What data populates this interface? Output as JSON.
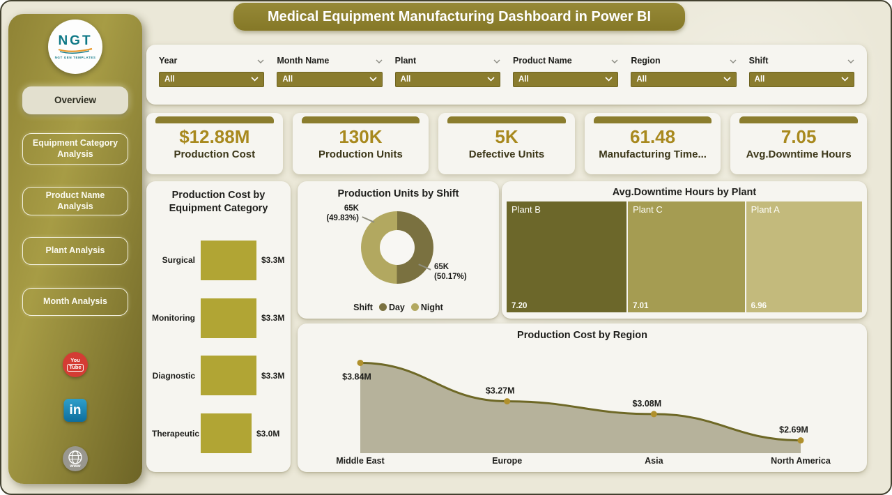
{
  "title": "Medical Equipment Manufacturing Dashboard in Power BI",
  "logo": {
    "text": "NGT",
    "subtext": "NGT GEN TEMPLATES"
  },
  "sidebar": {
    "items": [
      {
        "label": "Overview",
        "active": true
      },
      {
        "label": "Equipment Category Analysis",
        "active": false
      },
      {
        "label": "Product Name Analysis",
        "active": false
      },
      {
        "label": "Plant Analysis",
        "active": false
      },
      {
        "label": "Month Analysis",
        "active": false
      }
    ],
    "social": {
      "youtube_line1": "You",
      "youtube_line2": "Tube",
      "linkedin": "in",
      "web": "www"
    }
  },
  "filters": [
    {
      "label": "Year",
      "value": "All"
    },
    {
      "label": "Month Name",
      "value": "All"
    },
    {
      "label": "Plant",
      "value": "All"
    },
    {
      "label": "Product Name",
      "value": "All"
    },
    {
      "label": "Region",
      "value": "All"
    },
    {
      "label": "Shift",
      "value": "All"
    }
  ],
  "kpis": [
    {
      "value": "$12.88M",
      "label": "Production Cost"
    },
    {
      "value": "130K",
      "label": "Production Units"
    },
    {
      "value": "5K",
      "label": "Defective Units"
    },
    {
      "value": "61.48",
      "label": "Manufacturing Time..."
    },
    {
      "value": "7.05",
      "label": "Avg.Downtime Hours"
    }
  ],
  "chart_data": [
    {
      "type": "bar",
      "orientation": "horizontal",
      "title": "Production Cost by Equipment Category",
      "categories": [
        "Surgical",
        "Monitoring",
        "Diagnostic",
        "Therapeutic"
      ],
      "values": [
        3.3,
        3.3,
        3.3,
        3.0
      ],
      "labels": [
        "$3.3M",
        "$3.3M",
        "$3.3M",
        "$3.0M"
      ],
      "xlim": [
        0,
        3.5
      ],
      "unit": "USD millions"
    },
    {
      "type": "pie",
      "title": "Production Units by Shift",
      "legend_title": "Shift",
      "legend_position": "bottom",
      "slices": [
        {
          "name": "Day",
          "value": 65000,
          "value_label": "65K",
          "pct": 50.17,
          "pct_label": "(50.17%)"
        },
        {
          "name": "Night",
          "value": 65000,
          "value_label": "65K",
          "pct": 49.83,
          "pct_label": "(49.83%)"
        }
      ]
    },
    {
      "type": "heatmap",
      "subtype": "treemap",
      "title": "Avg.Downtime Hours by Plant",
      "tiles": [
        {
          "name": "Plant B",
          "value": 7.2,
          "value_label": "7.20"
        },
        {
          "name": "Plant C",
          "value": 7.01,
          "value_label": "7.01"
        },
        {
          "name": "Plant A",
          "value": 6.96,
          "value_label": "6.96"
        }
      ]
    },
    {
      "type": "area",
      "title": "Production Cost by Region",
      "categories": [
        "Middle East",
        "Europe",
        "Asia",
        "North America"
      ],
      "values": [
        3.84,
        3.27,
        3.08,
        2.69
      ],
      "labels": [
        "$3.84M",
        "$3.27M",
        "$3.08M",
        "$2.69M"
      ],
      "ylim": [
        2.5,
        4.0
      ],
      "grid": false,
      "unit": "USD millions"
    }
  ],
  "colors": {
    "accent_olive": "#8b7d2e",
    "gold_value": "#a8891e",
    "bar": "#b1a534",
    "day": "#7a7140",
    "night": "#b2a860",
    "treemap": [
      "#6c672a",
      "#a59c52",
      "#c3ba7c"
    ],
    "area_fill": "#b6b29b",
    "area_line": "#6e6826",
    "marker": "#b0902c",
    "background": "#ebe8d8"
  }
}
